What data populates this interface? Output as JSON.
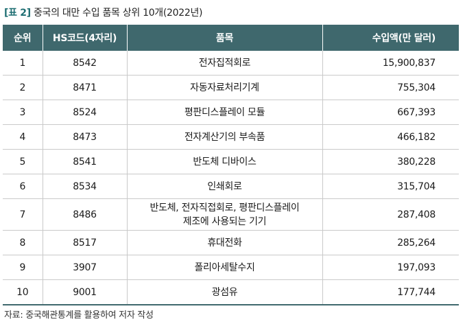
{
  "caption": {
    "tag": "[표 2]",
    "title": "중국의 대만 수입 품목 상위 10개(2022년)"
  },
  "table": {
    "headers": {
      "rank": "순위",
      "hs_code": "HS코드(4자리)",
      "item": "품목",
      "amount": "수입액(만 달러)"
    },
    "rows": [
      {
        "rank": "1",
        "hs_code": "8542",
        "item": "전자집적회로",
        "amount": "15,900,837"
      },
      {
        "rank": "2",
        "hs_code": "8471",
        "item": "자동자료처리기계",
        "amount": "755,304"
      },
      {
        "rank": "3",
        "hs_code": "8524",
        "item": "평판디스플레이 모듈",
        "amount": "667,393"
      },
      {
        "rank": "4",
        "hs_code": "8473",
        "item": "전자계산기의 부속품",
        "amount": "466,182"
      },
      {
        "rank": "5",
        "hs_code": "8541",
        "item": "반도체 디바이스",
        "amount": "380,228"
      },
      {
        "rank": "6",
        "hs_code": "8534",
        "item": "인쇄회로",
        "amount": "315,704"
      },
      {
        "rank": "7",
        "hs_code": "8486",
        "item_line1": "반도체, 전자직접회로, 평판디스플레이",
        "item_line2": "제조에 사용되는 기기",
        "amount": "287,408"
      },
      {
        "rank": "8",
        "hs_code": "8517",
        "item": "휴대전화",
        "amount": "285,264"
      },
      {
        "rank": "9",
        "hs_code": "3907",
        "item": "폴리아세탈수지",
        "amount": "197,093"
      },
      {
        "rank": "10",
        "hs_code": "9001",
        "item": "광섬유",
        "amount": "177,744"
      }
    ]
  },
  "source": "자료: 중국해관통계를 활용하여 저자 작성"
}
